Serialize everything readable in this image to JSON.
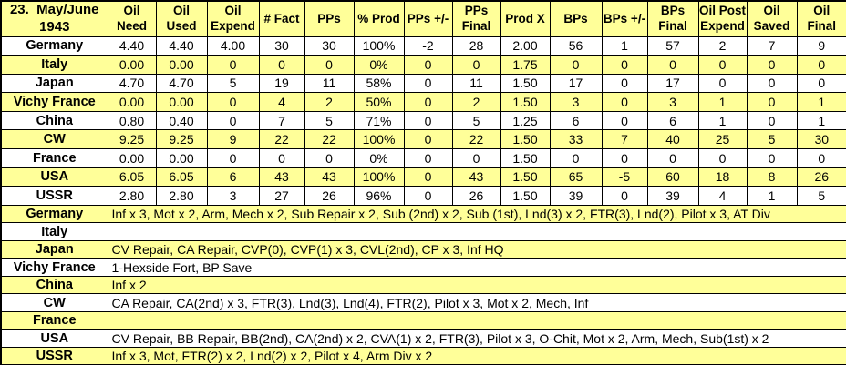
{
  "title": "23.  May/June\n1943",
  "colors": {
    "row_highlight": "#FFFF99",
    "row_plain": "#FFFFFF",
    "border": "#000000",
    "text": "#000000"
  },
  "columns": [
    "Oil\nNeed",
    "Oil\nUsed",
    "Oil\nExpend",
    "# Fact",
    "PPs",
    "% Prod",
    "PPs +/-",
    "PPs\nFinal",
    "Prod X",
    "BPs",
    "BPs +/-",
    "BPs\nFinal",
    "Oil Post\nExpend",
    "Oil\nSaved",
    "Oil\nFinal"
  ],
  "production_rows": [
    {
      "country": "Germany",
      "values": [
        "4.40",
        "4.40",
        "4.00",
        "30",
        "30",
        "100%",
        "-2",
        "28",
        "2.00",
        "56",
        "1",
        "57",
        "2",
        "7",
        "9"
      ]
    },
    {
      "country": "Italy",
      "values": [
        "0.00",
        "0.00",
        "0",
        "0",
        "0",
        "0%",
        "0",
        "0",
        "1.75",
        "0",
        "0",
        "0",
        "0",
        "0",
        "0"
      ]
    },
    {
      "country": "Japan",
      "values": [
        "4.70",
        "4.70",
        "5",
        "19",
        "11",
        "58%",
        "0",
        "11",
        "1.50",
        "17",
        "0",
        "17",
        "0",
        "0",
        "0"
      ]
    },
    {
      "country": "Vichy France",
      "values": [
        "0.00",
        "0.00",
        "0",
        "4",
        "2",
        "50%",
        "0",
        "2",
        "1.50",
        "3",
        "0",
        "3",
        "1",
        "0",
        "1"
      ]
    },
    {
      "country": "China",
      "values": [
        "0.80",
        "0.40",
        "0",
        "7",
        "5",
        "71%",
        "0",
        "5",
        "1.25",
        "6",
        "0",
        "6",
        "1",
        "0",
        "1"
      ]
    },
    {
      "country": "CW",
      "values": [
        "9.25",
        "9.25",
        "9",
        "22",
        "22",
        "100%",
        "0",
        "22",
        "1.50",
        "33",
        "7",
        "40",
        "25",
        "5",
        "30"
      ]
    },
    {
      "country": "France",
      "values": [
        "0.00",
        "0.00",
        "0",
        "0",
        "0",
        "0%",
        "0",
        "0",
        "1.50",
        "0",
        "0",
        "0",
        "0",
        "0",
        "0"
      ]
    },
    {
      "country": "USA",
      "values": [
        "6.05",
        "6.05",
        "6",
        "43",
        "43",
        "100%",
        "0",
        "43",
        "1.50",
        "65",
        "-5",
        "60",
        "18",
        "8",
        "26"
      ]
    },
    {
      "country": "USSR",
      "values": [
        "2.80",
        "2.80",
        "3",
        "27",
        "26",
        "96%",
        "0",
        "26",
        "1.50",
        "39",
        "0",
        "39",
        "4",
        "1",
        "5"
      ]
    }
  ],
  "build_rows": [
    {
      "country": "Germany",
      "builds": "Inf x 3, Mot x 2, Arm, Mech x 2, Sub Repair x 2, Sub (2nd) x 2, Sub (1st), Lnd(3) x 2, FTR(3), Lnd(2), Pilot x 3, AT Div"
    },
    {
      "country": "Italy",
      "builds": ""
    },
    {
      "country": "Japan",
      "builds": "CV Repair, CA Repair, CVP(0), CVP(1) x 3, CVL(2nd), CP x 3, Inf HQ"
    },
    {
      "country": "Vichy France",
      "builds": "1-Hexside Fort, BP Save"
    },
    {
      "country": "China",
      "builds": "Inf x 2"
    },
    {
      "country": "CW",
      "builds": "CA Repair, CA(2nd) x 3, FTR(3), Lnd(3), Lnd(4), FTR(2), Pilot x 3, Mot x 2, Mech, Inf"
    },
    {
      "country": "France",
      "builds": ""
    },
    {
      "country": "USA",
      "builds": "CV Repair, BB Repair, BB(2nd), CA(2nd) x 2, CVA(1) x 2, FTR(3), Pilot x 3, O-Chit, Mot x 2, Arm, Mech, Sub(1st) x 2"
    },
    {
      "country": "USSR",
      "builds": "Inf x 3, Mot, FTR(2) x 2, Lnd(2) x 2, Pilot x 4, Arm Div x 2"
    }
  ]
}
